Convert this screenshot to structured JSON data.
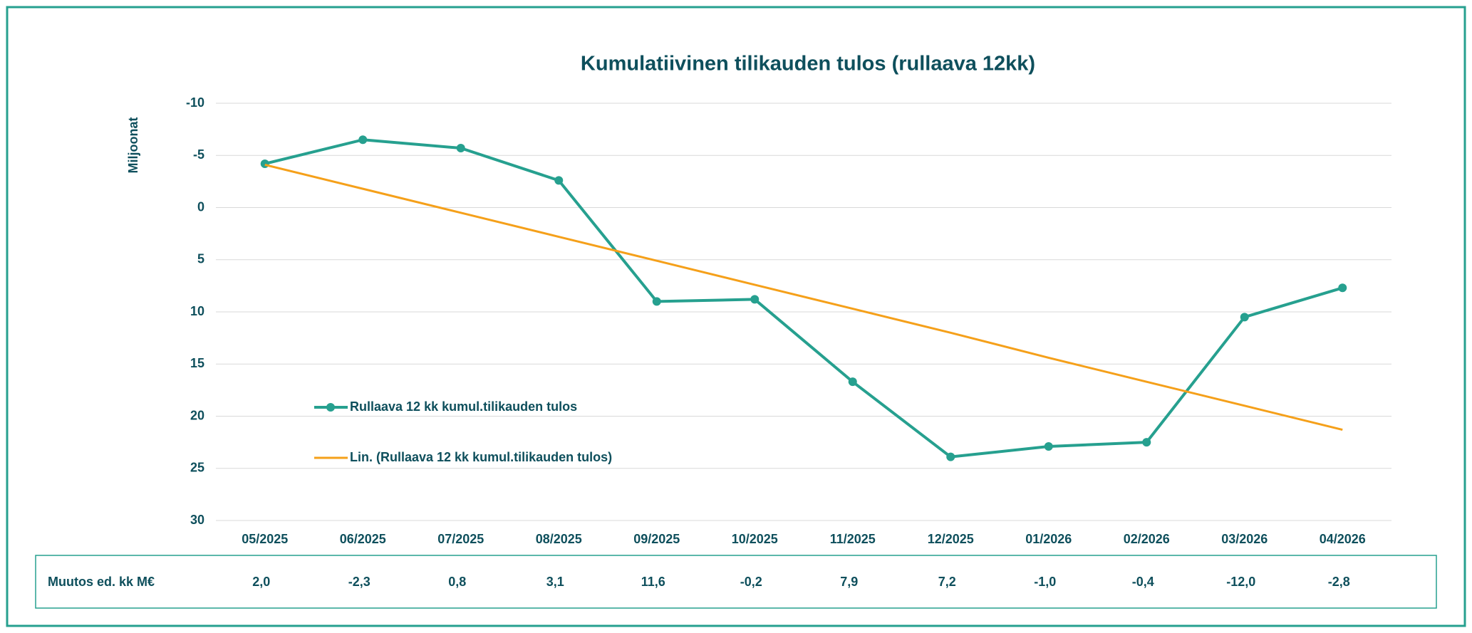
{
  "chart_data": {
    "type": "line",
    "title": "Kumulatiivinen tilikauden tulos (rullaava 12kk)",
    "y_label": "Miljoonat",
    "categories": [
      "05/2025",
      "06/2025",
      "07/2025",
      "08/2025",
      "09/2025",
      "10/2025",
      "11/2025",
      "12/2025",
      "01/2026",
      "02/2026",
      "03/2026",
      "04/2026"
    ],
    "series": [
      {
        "name": "Rullaava 12 kk kumul.tilikauden tulos",
        "color": "#26a08f",
        "markers": true,
        "values": [
          -4.2,
          -6.5,
          -5.7,
          -2.6,
          9.0,
          8.8,
          16.7,
          23.9,
          22.9,
          22.5,
          10.5,
          7.7
        ]
      },
      {
        "name": "Lin. (Rullaava 12 kk kumul.tilikauden tulos)",
        "color": "#f5a01a",
        "markers": false,
        "values": [
          -4.1,
          -1.8,
          0.5,
          2.8,
          5.1,
          7.4,
          9.7,
          12.0,
          14.4,
          16.7,
          19.0,
          21.3
        ]
      }
    ],
    "ylim": [
      -10,
      30
    ],
    "yticks": [
      -10,
      -5,
      0,
      5,
      10,
      15,
      20,
      25,
      30
    ],
    "y_reversed": true,
    "grid": true,
    "table": {
      "label": "Muutos ed. kk M€",
      "values": [
        2.0,
        -2.3,
        0.8,
        3.1,
        11.6,
        -0.2,
        7.9,
        7.2,
        -1.0,
        -0.4,
        -12.0,
        -2.8
      ],
      "value_labels": [
        "2,0",
        "-2,3",
        "0,8",
        "3,1",
        "11,6",
        "-0,2",
        "7,9",
        "7,2",
        "-1,0",
        "-0,4",
        "-12,0",
        "-2,8"
      ]
    }
  }
}
